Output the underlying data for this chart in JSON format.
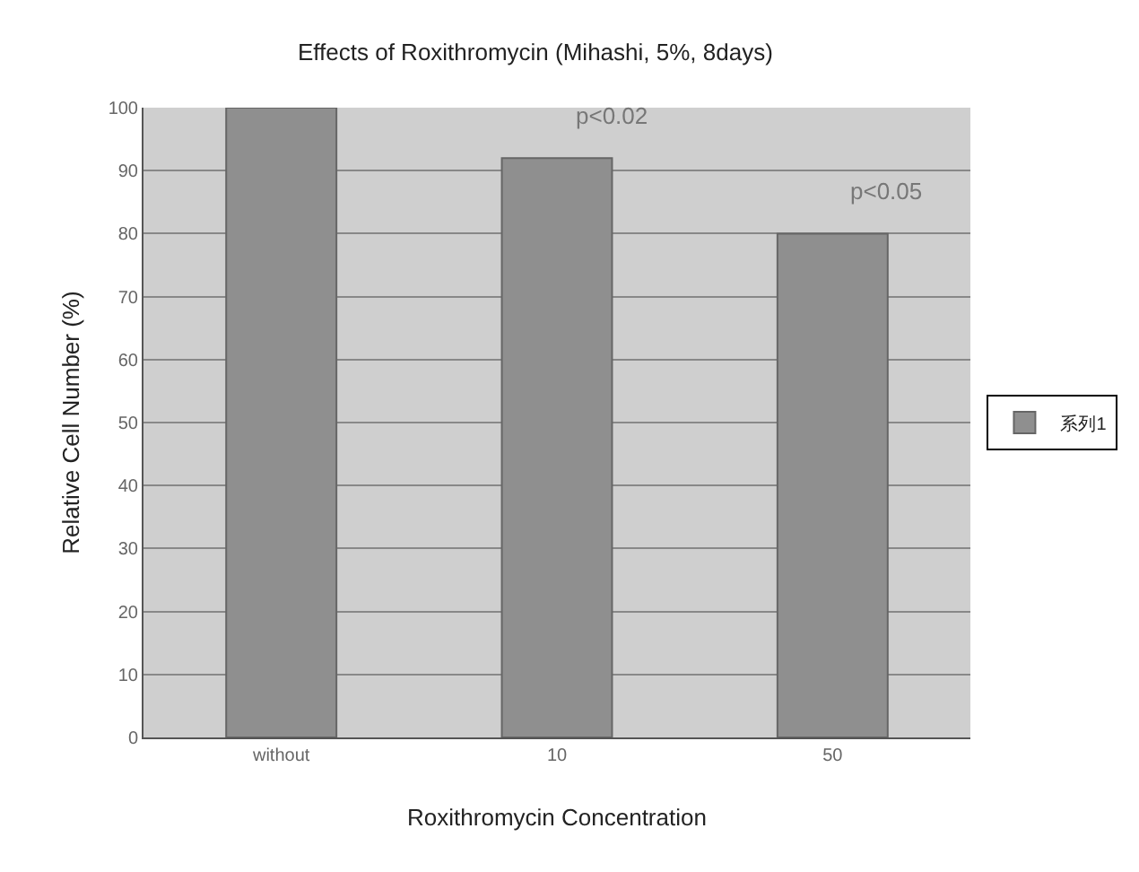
{
  "chart_data": {
    "type": "bar",
    "title": "Effects of Roxithromycin (Mihashi, 5%, 8days)",
    "xlabel": "Roxithromycin Concentration",
    "ylabel": "Relative Cell Number (%)",
    "categories": [
      "without",
      "10",
      "50"
    ],
    "series": [
      {
        "name": "系列1",
        "color": "#8f8f8f",
        "values": [
          100,
          92,
          80
        ]
      }
    ],
    "ylim": [
      0,
      100
    ],
    "yticks": [
      0,
      10,
      20,
      30,
      40,
      50,
      60,
      70,
      80,
      90,
      100
    ],
    "grid": "y",
    "legend": "right",
    "annotations": [
      {
        "text": "p<0.02",
        "x": "10",
        "y": 92
      },
      {
        "text": "p<0.05",
        "x": "50",
        "y": 80
      }
    ]
  }
}
